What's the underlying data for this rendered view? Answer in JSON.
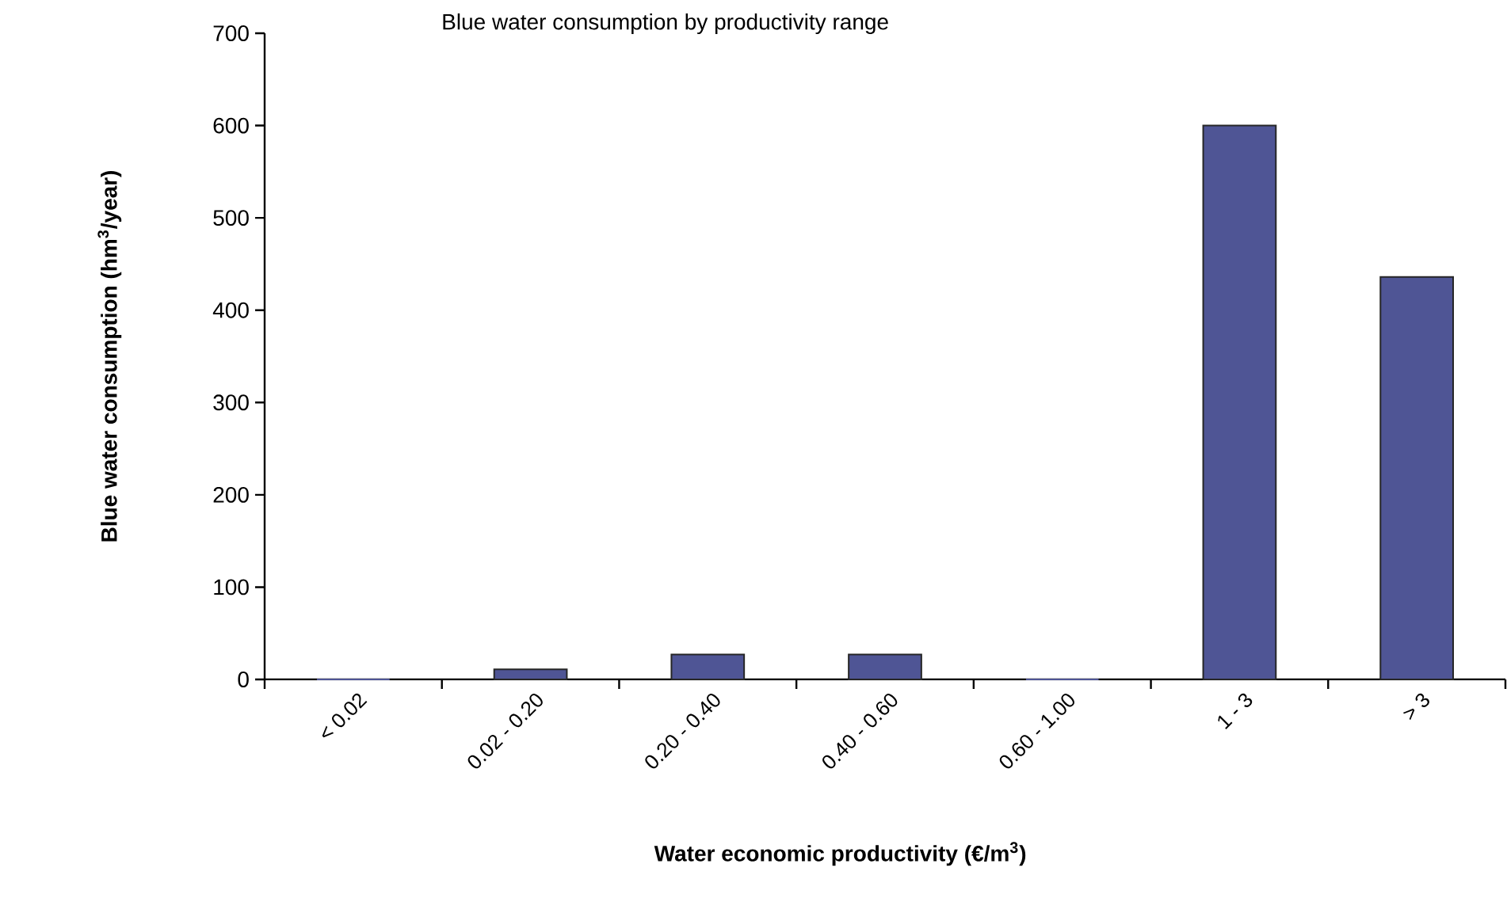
{
  "chart_data": {
    "type": "bar",
    "title": "Blue water consumption by productivity range",
    "xlabel": "Water economic productivity (€/m$^{3}$)",
    "ylabel": "Blue water consumption (hm$^{3}$/year)",
    "categories": [
      "< 0.02",
      "0.02 - 0.20",
      "0.20 - 0.40",
      "0.40 - 0.60",
      "0.60 - 1.00",
      "1 - 3",
      "> 3"
    ],
    "values": [
      0,
      11,
      27,
      27,
      0,
      600,
      436
    ],
    "color": "#4f5595",
    "ylim": [
      0,
      700
    ],
    "yticks": [
      0,
      100,
      200,
      300,
      400,
      500,
      600,
      700
    ]
  }
}
